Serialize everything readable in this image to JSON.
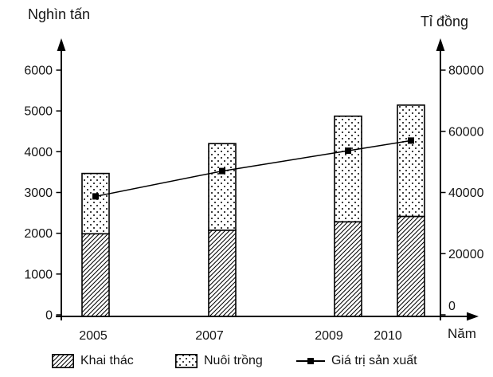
{
  "chart_data": {
    "type": "bar",
    "subtype": "stacked-bars-with-line",
    "categories": [
      "2005",
      "2007",
      "2009",
      "2010"
    ],
    "series": [
      {
        "name": "Khai thác",
        "type": "bar",
        "stack": "san-luong",
        "axis": "left",
        "fill_pattern": "diagonal-hatch",
        "values": [
          1988,
          2075,
          2281,
          2414
        ]
      },
      {
        "name": "Nuôi trồng",
        "type": "bar",
        "stack": "san-luong",
        "axis": "left",
        "fill_pattern": "dots",
        "values": [
          1479,
          2123,
          2590,
          2728
        ]
      },
      {
        "name": "Giá trị sản xuất",
        "type": "line",
        "axis": "right",
        "marker": "filled-square",
        "color": "#000000",
        "values": [
          38727,
          47014,
          53654,
          56966
        ]
      }
    ],
    "left_axis": {
      "title": "Nghìn tấn",
      "min": 0,
      "max": 6000,
      "ticks": [
        0,
        1000,
        2000,
        3000,
        4000,
        5000,
        6000
      ]
    },
    "right_axis": {
      "title": "Tỉ đồng",
      "min": 0,
      "max": 80000,
      "ticks": [
        0,
        20000,
        40000,
        60000,
        80000
      ]
    },
    "x_axis": {
      "title": "Năm",
      "labels": [
        "2005",
        "2007",
        "2009",
        "2010"
      ]
    },
    "legend": [
      {
        "label": "Khai thác",
        "swatch": "diagonal-hatch"
      },
      {
        "label": "Nuôi trồng",
        "swatch": "dots"
      },
      {
        "label": "Giá trị sản xuất",
        "swatch": "line-square-marker"
      }
    ],
    "grid": "off",
    "legend_position": "bottom",
    "colors": {
      "ink": "#000000",
      "text": "#151515",
      "background": "#ffffff"
    }
  }
}
